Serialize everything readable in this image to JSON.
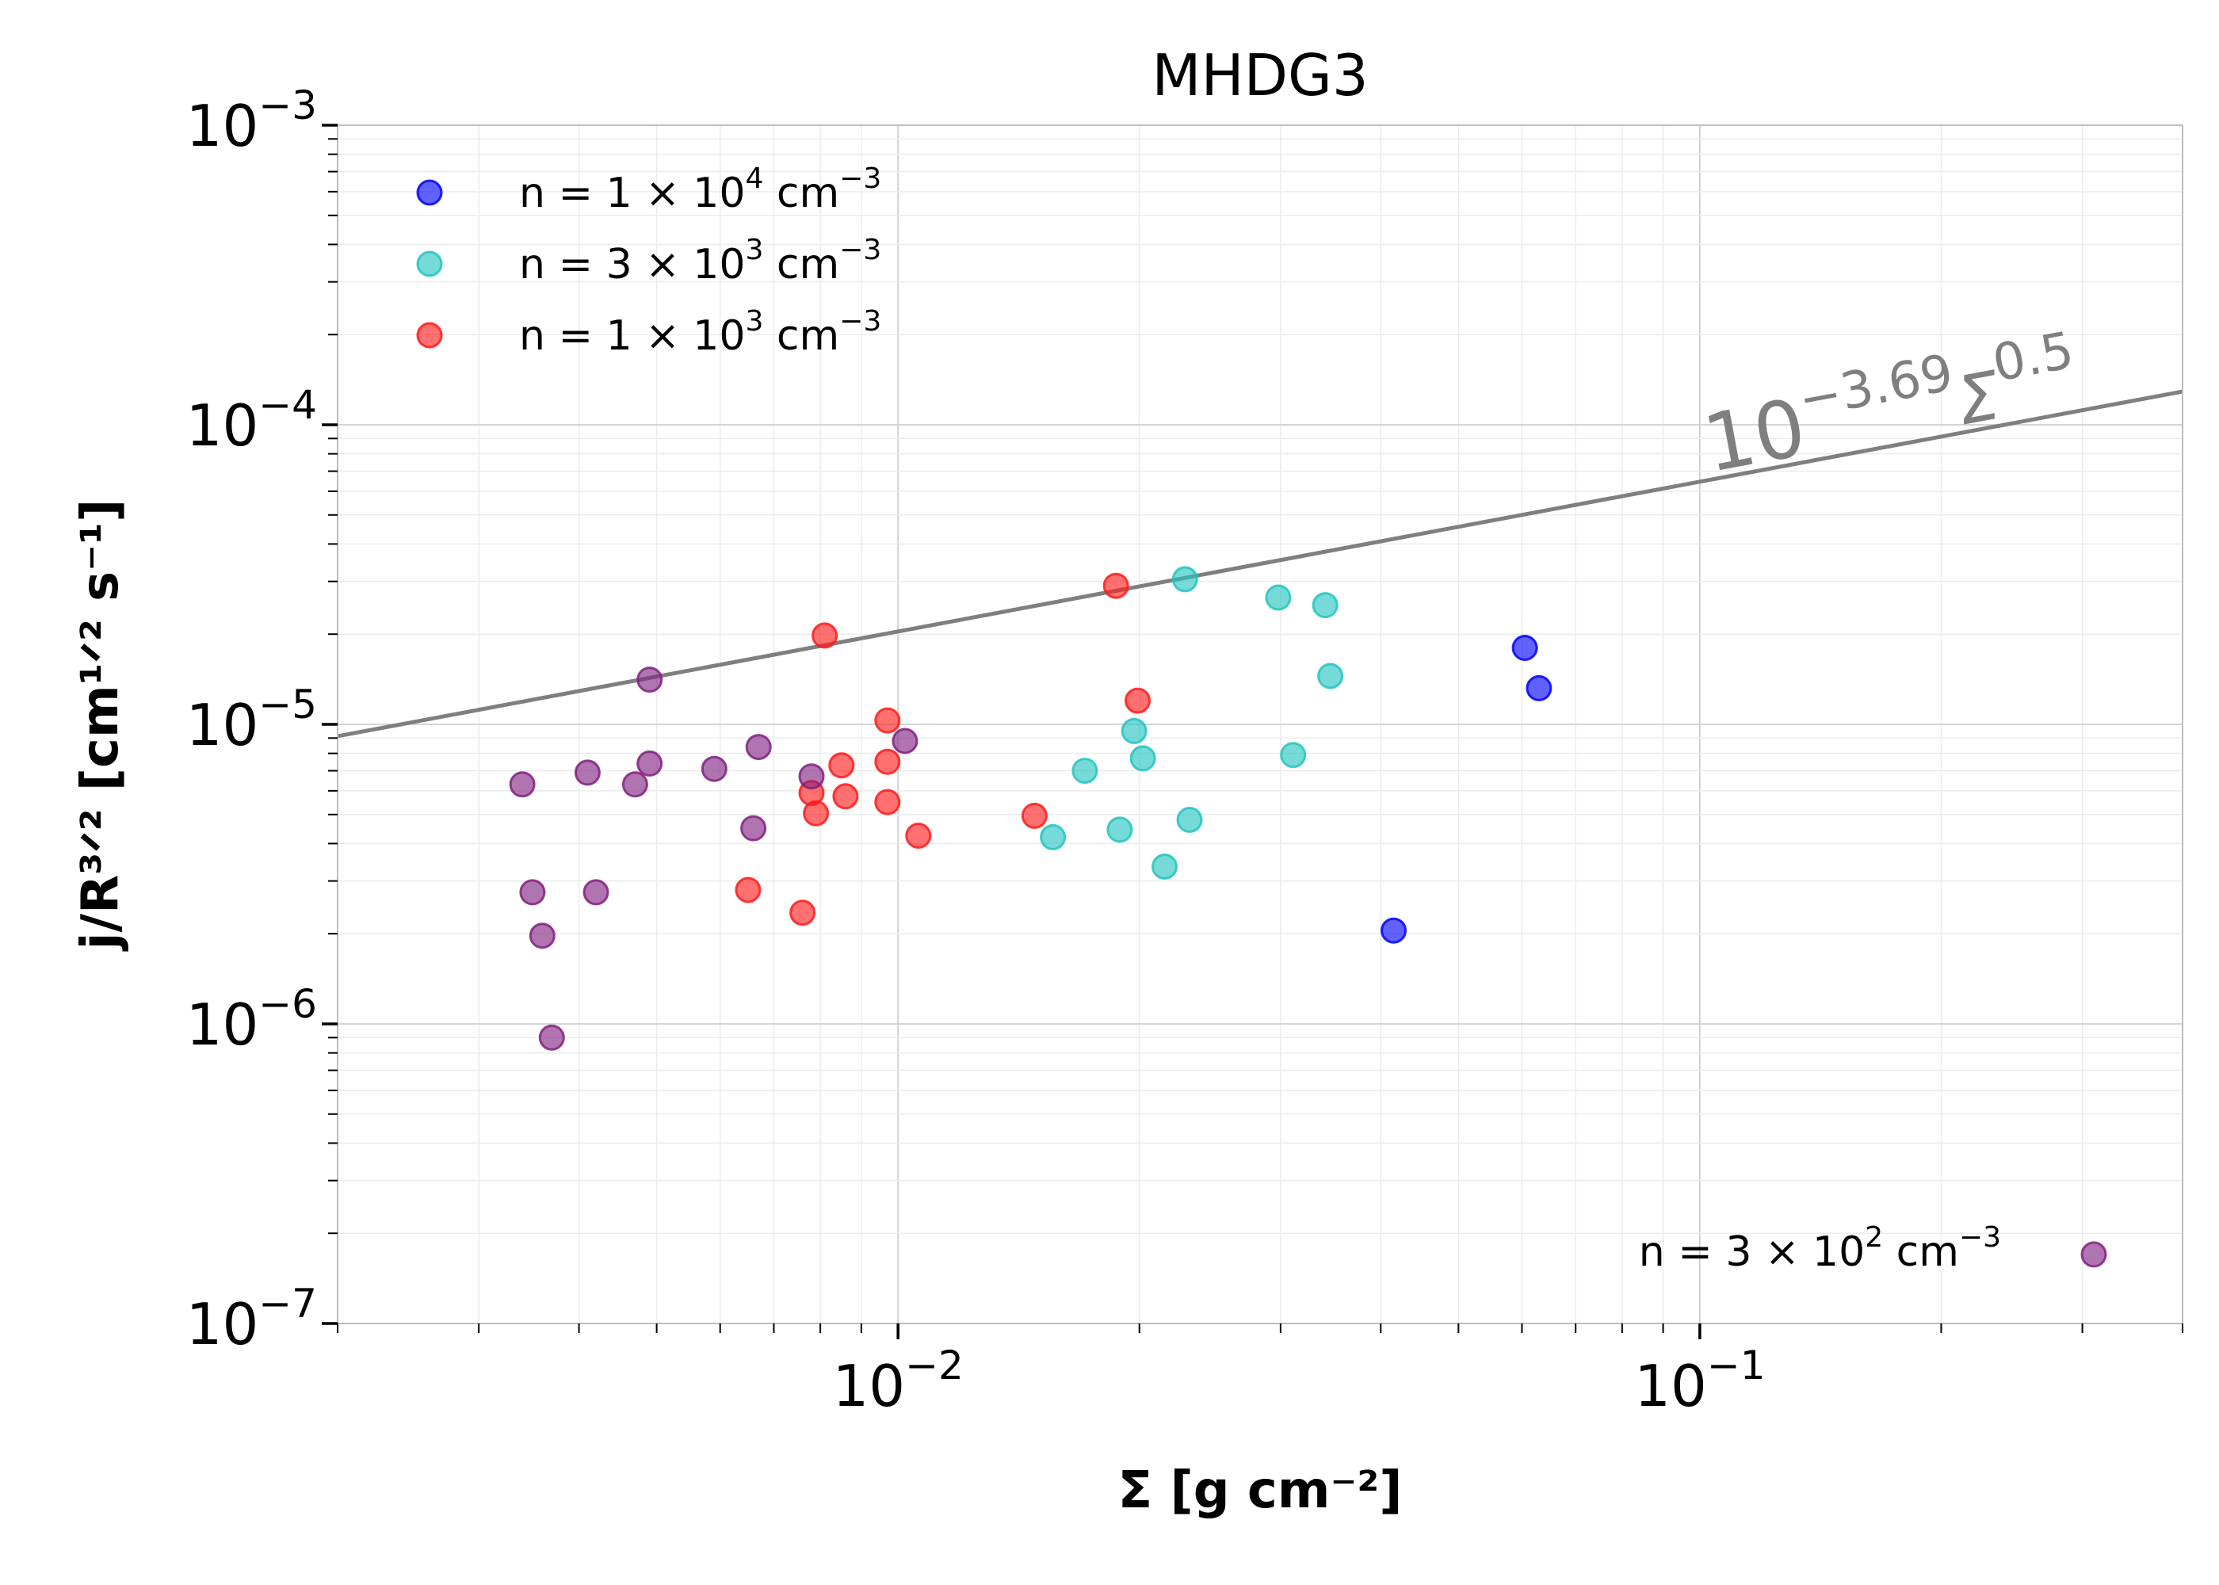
{
  "chart_data": {
    "type": "scatter",
    "title": "MHDG3",
    "xlabel": "Σ [g cm⁻²]",
    "ylabel": "j/R³ᐟ² [cm¹ᐟ² s⁻¹]",
    "xscale": "log",
    "yscale": "log",
    "xlim": [
      0.002,
      0.4
    ],
    "ylim": [
      1e-07,
      0.001
    ],
    "grid": true,
    "legend_position": "top-left",
    "x_tick_labels": [
      {
        "value": 0.01,
        "base": "10",
        "exp": "−2"
      },
      {
        "value": 0.1,
        "base": "10",
        "exp": "−1"
      }
    ],
    "y_tick_labels": [
      {
        "value": 1e-07,
        "base": "10",
        "exp": "−7"
      },
      {
        "value": 1e-06,
        "base": "10",
        "exp": "−6"
      },
      {
        "value": 1e-05,
        "base": "10",
        "exp": "−5"
      },
      {
        "value": 0.0001,
        "base": "10",
        "exp": "−4"
      },
      {
        "value": 0.001,
        "base": "10",
        "exp": "−3"
      }
    ],
    "fit_line": {
      "log10_coefficient": -3.69,
      "exponent": 0.5,
      "color": "#7f7f7f",
      "label_base": "10",
      "label_exp": "−3.69",
      "label_sigma": "Σ",
      "label_sigma_exp": "0.5"
    },
    "series": [
      {
        "name": "n = 1 × 10⁴ cm⁻³",
        "legend_prefix": "n",
        "legend_mid": " = 1 × 10",
        "legend_sup": "4",
        "legend_unit": " cm",
        "legend_unit_sup": "−3",
        "color": "#0000ff",
        "points": [
          [
            0.0415,
            2.05e-06
          ],
          [
            0.0605,
            1.8e-05
          ],
          [
            0.063,
            1.32e-05
          ]
        ]
      },
      {
        "name": "n = 3 × 10³ cm⁻³",
        "legend_prefix": "n",
        "legend_mid": " = 3 × 10",
        "legend_sup": "3",
        "legend_unit": " cm",
        "legend_unit_sup": "−3",
        "color": "#22c4c0",
        "points": [
          [
            0.0156,
            4.2e-06
          ],
          [
            0.0171,
            7e-06
          ],
          [
            0.0189,
            4.45e-06
          ],
          [
            0.0197,
            9.5e-06
          ],
          [
            0.0202,
            7.7e-06
          ],
          [
            0.0215,
            3.35e-06
          ],
          [
            0.0228,
            3.05e-05
          ],
          [
            0.0231,
            4.8e-06
          ],
          [
            0.0298,
            2.65e-05
          ],
          [
            0.0311,
            7.9e-06
          ],
          [
            0.0341,
            2.5e-05
          ],
          [
            0.0346,
            1.45e-05
          ]
        ]
      },
      {
        "name": "n = 1 × 10³ cm⁻³",
        "legend_prefix": "n",
        "legend_mid": " = 1 × 10",
        "legend_sup": "3",
        "legend_unit": " cm",
        "legend_unit_sup": "−3",
        "color": "#ff1a1a",
        "points": [
          [
            0.0065,
            2.8e-06
          ],
          [
            0.0076,
            2.35e-06
          ],
          [
            0.0078,
            5.9e-06
          ],
          [
            0.0079,
            5.05e-06
          ],
          [
            0.0081,
            1.98e-05
          ],
          [
            0.0085,
            7.3e-06
          ],
          [
            0.0086,
            5.75e-06
          ],
          [
            0.0097,
            1.03e-05
          ],
          [
            0.0097,
            7.5e-06
          ],
          [
            0.0097,
            5.5e-06
          ],
          [
            0.0106,
            4.25e-06
          ],
          [
            0.0148,
            4.95e-06
          ],
          [
            0.0187,
            2.9e-05
          ],
          [
            0.0199,
            1.2e-05
          ]
        ]
      },
      {
        "name": "n = 3 × 10² cm⁻³",
        "legend_prefix": "n",
        "legend_mid": " = 3 × 10",
        "legend_sup": "2",
        "legend_unit": " cm",
        "legend_unit_sup": "−3",
        "legend_placement": "bottom-right",
        "color": "#80207f",
        "points": [
          [
            0.0034,
            6.3e-06
          ],
          [
            0.0035,
            2.75e-06
          ],
          [
            0.0036,
            1.97e-06
          ],
          [
            0.0037,
            9e-07
          ],
          [
            0.0041,
            6.9e-06
          ],
          [
            0.0042,
            2.75e-06
          ],
          [
            0.0047,
            6.3e-06
          ],
          [
            0.0049,
            7.4e-06
          ],
          [
            0.0049,
            1.41e-05
          ],
          [
            0.0059,
            7.1e-06
          ],
          [
            0.0066,
            4.5e-06
          ],
          [
            0.0067,
            8.4e-06
          ],
          [
            0.0078,
            6.7e-06
          ],
          [
            0.0102,
            8.8e-06
          ],
          [
            0.31,
            1.7e-07
          ]
        ]
      }
    ]
  }
}
